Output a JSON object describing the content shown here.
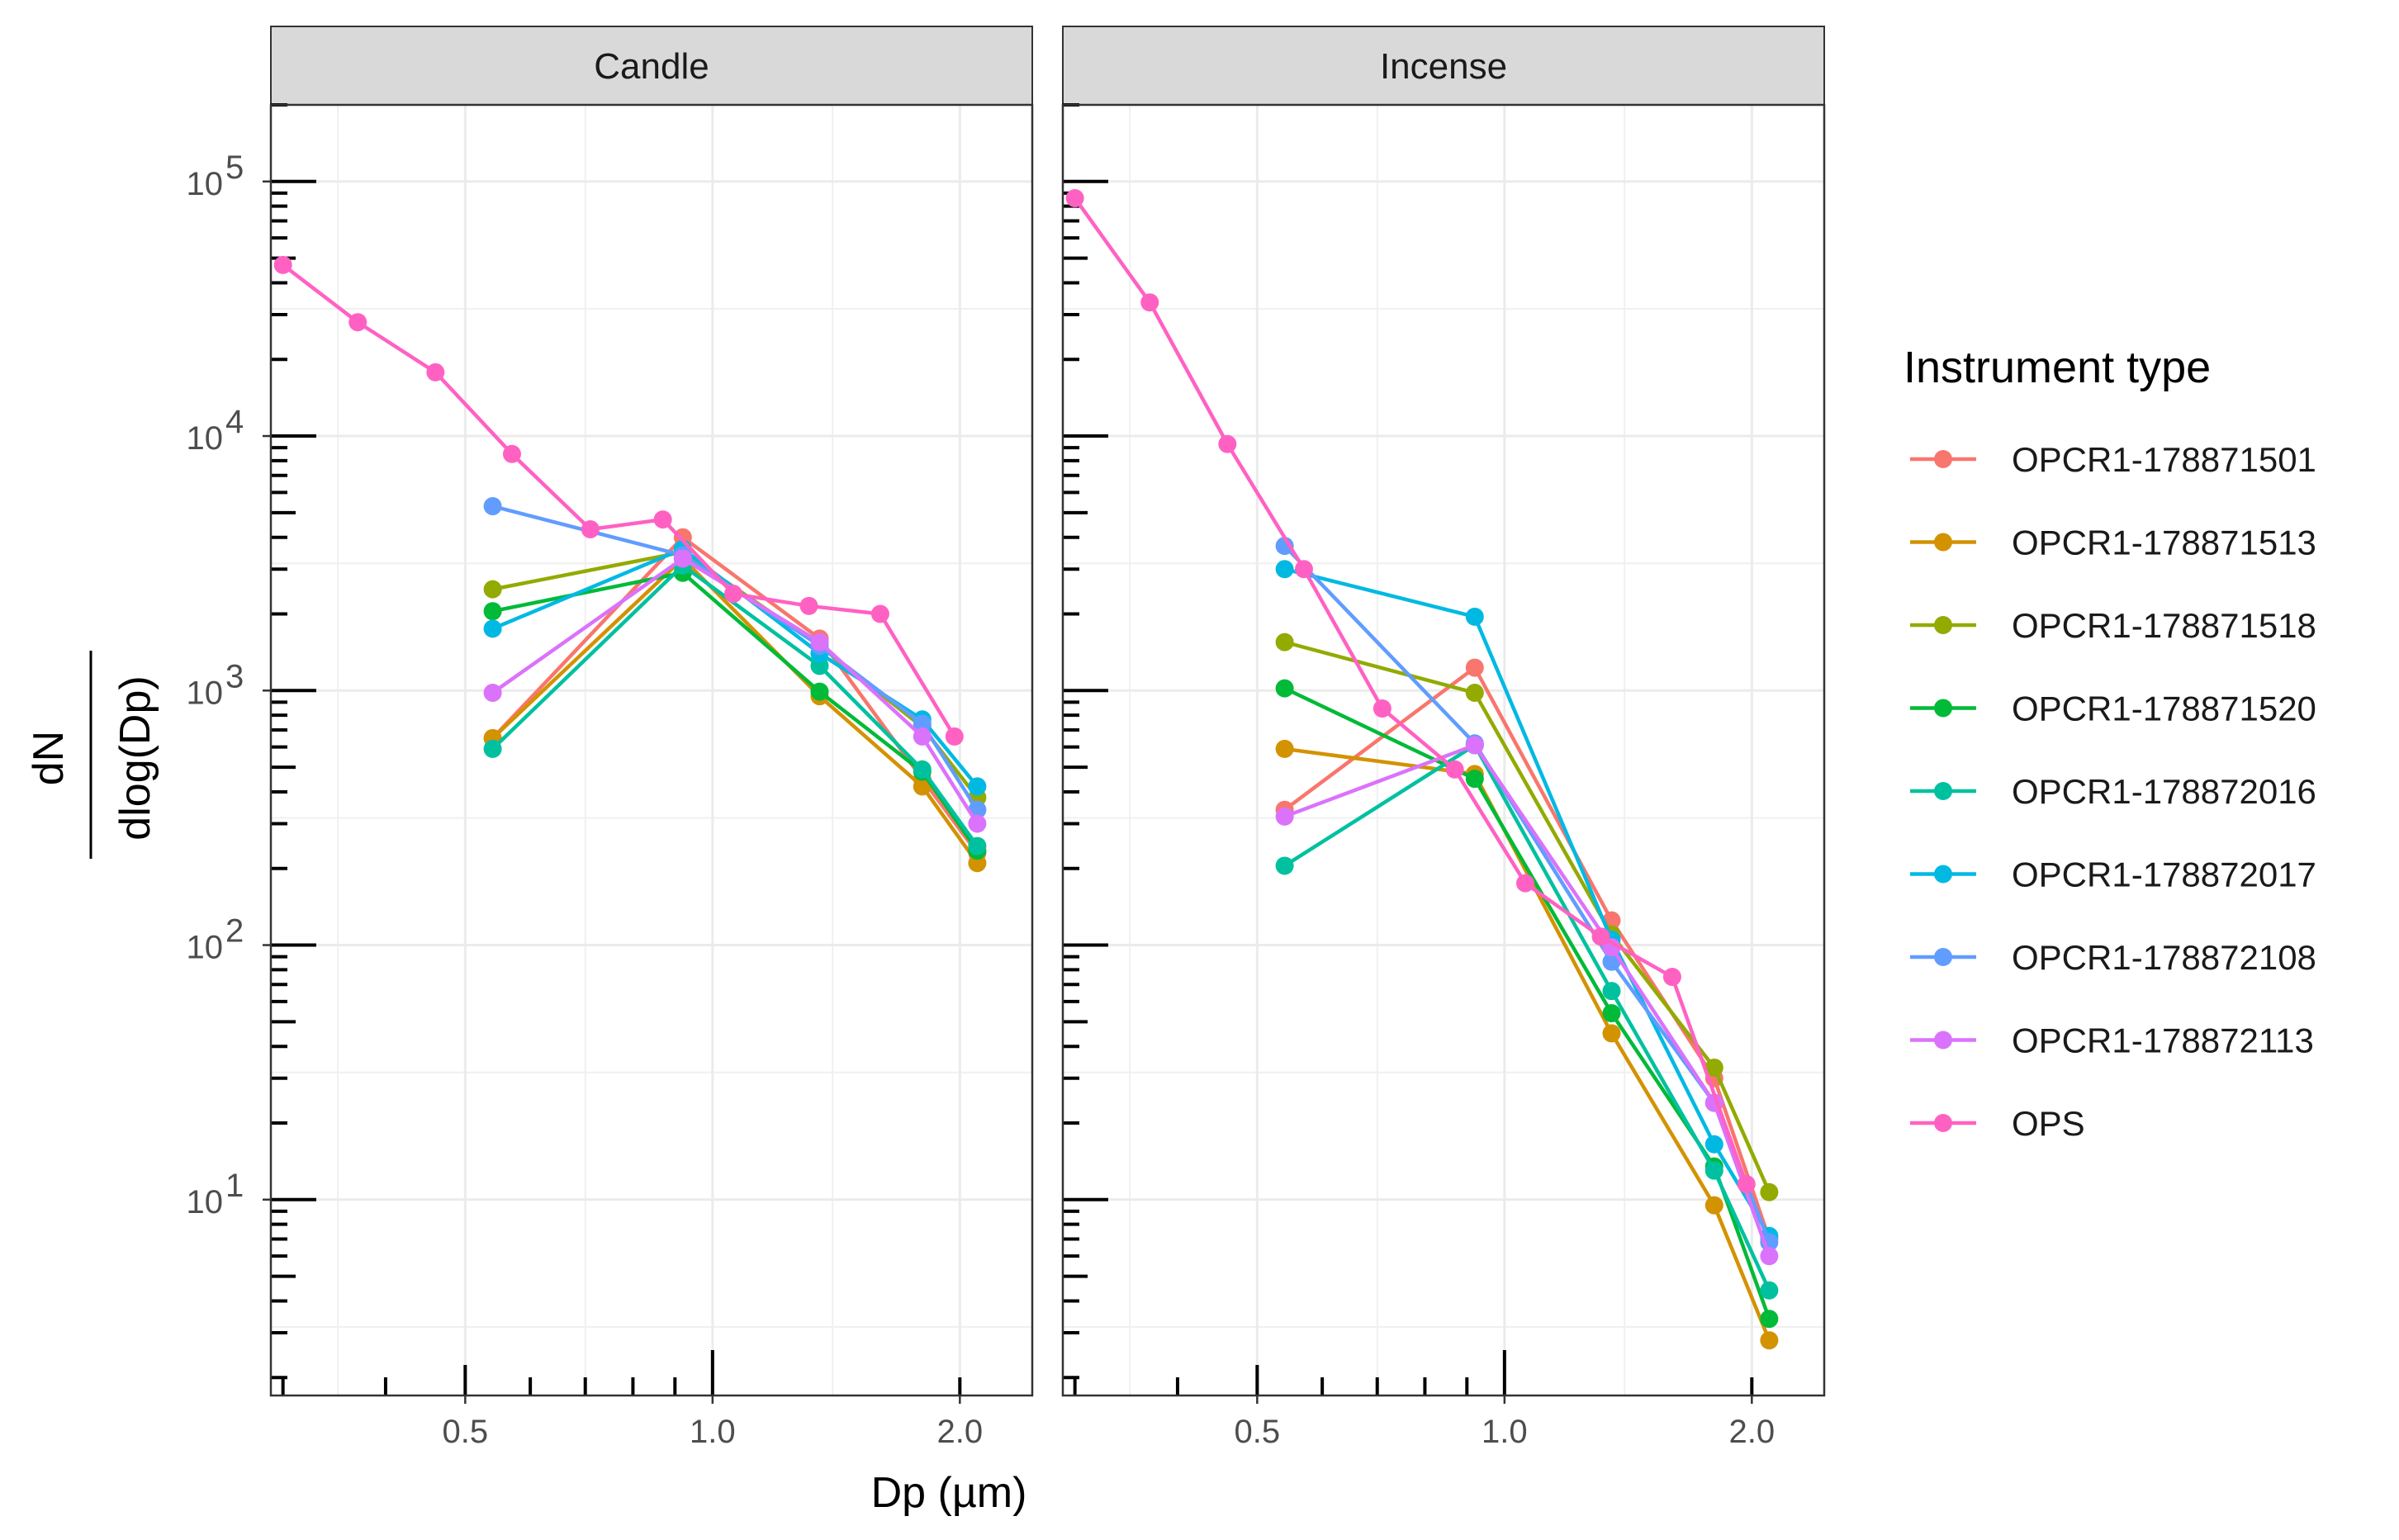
{
  "chart_data": {
    "type": "line",
    "facets": [
      "Candle",
      "Incense"
    ],
    "xlabel": "Dp (µm)",
    "ylabel_numerator": "dN",
    "ylabel_denominator": "dlog(Dp)",
    "x_scale": "log10",
    "y_scale": "log10",
    "xlim": [
      0.29,
      2.45
    ],
    "ylim": [
      1.7,
      200000
    ],
    "x_ticks": [
      {
        "value": 0.5,
        "label": "0.5"
      },
      {
        "value": 1.0,
        "label": "1.0"
      },
      {
        "value": 2.0,
        "label": "2.0"
      }
    ],
    "y_ticks": [
      {
        "value": 10,
        "base": "10",
        "exp": "1"
      },
      {
        "value": 100,
        "base": "10",
        "exp": "2"
      },
      {
        "value": 1000,
        "base": "10",
        "exp": "3"
      },
      {
        "value": 10000,
        "base": "10",
        "exp": "4"
      },
      {
        "value": 100000,
        "base": "10",
        "exp": "5"
      }
    ],
    "legend_title": "Instrument type",
    "legend_position": "right",
    "series": [
      {
        "name": "OPCR1-178871501",
        "color": "#F8766D",
        "x": [
          0.54,
          0.92,
          1.35,
          1.8,
          2.1
        ],
        "candle": [
          650,
          4000,
          1600,
          450,
          230
        ],
        "incense": [
          340,
          1230,
          125,
          30,
          7
        ]
      },
      {
        "name": "OPCR1-178871513",
        "color": "#D39200",
        "x": [
          0.54,
          0.92,
          1.35,
          1.8,
          2.1
        ],
        "candle": [
          650,
          3300,
          950,
          420,
          210
        ],
        "incense": [
          590,
          470,
          45,
          9.5,
          2.8
        ]
      },
      {
        "name": "OPCR1-178871518",
        "color": "#93AA00",
        "x": [
          0.54,
          0.92,
          1.35,
          1.8,
          2.1
        ],
        "candle": [
          2500,
          3500,
          1500,
          720,
          380
        ],
        "incense": [
          1550,
          980,
          110,
          33,
          10.7
        ]
      },
      {
        "name": "OPCR1-178871520",
        "color": "#00BA38",
        "x": [
          0.54,
          0.92,
          1.35,
          1.8,
          2.1
        ],
        "candle": [
          2050,
          2900,
          990,
          480,
          235
        ],
        "incense": [
          1020,
          450,
          54,
          13.5,
          3.4
        ]
      },
      {
        "name": "OPCR1-178872016",
        "color": "#00C19F",
        "x": [
          0.54,
          0.92,
          1.35,
          1.8,
          2.1
        ],
        "candle": [
          590,
          3100,
          1250,
          490,
          245
        ],
        "incense": [
          205,
          610,
          66,
          13,
          4.4
        ]
      },
      {
        "name": "OPCR1-178872017",
        "color": "#00B9E3",
        "x": [
          0.54,
          0.92,
          1.35,
          1.8,
          2.1
        ],
        "candle": [
          1750,
          3600,
          1400,
          770,
          420
        ],
        "incense": [
          3000,
          1950,
          105,
          16.5,
          7.2
        ]
      },
      {
        "name": "OPCR1-178872108",
        "color": "#619CFF",
        "x": [
          0.54,
          0.92,
          1.35,
          1.8,
          2.1
        ],
        "candle": [
          5300,
          3400,
          1500,
          740,
          340
        ],
        "incense": [
          3700,
          620,
          86,
          24,
          6.8
        ]
      },
      {
        "name": "OPCR1-178872113",
        "color": "#DB72FB",
        "x": [
          0.54,
          0.92,
          1.35,
          1.8,
          2.1
        ],
        "candle": [
          980,
          3300,
          1550,
          660,
          300
        ],
        "incense": [
          320,
          610,
          98,
          24,
          6
        ]
      },
      {
        "name": "OPS",
        "color": "#FF61C3",
        "x": [
          0.3,
          0.37,
          0.46,
          0.57,
          0.71,
          0.87,
          1.06,
          1.31,
          1.6,
          1.97,
          2.4
        ],
        "candle": [
          47000,
          28000,
          17800,
          8500,
          4300,
          4700,
          2400,
          2150,
          2000,
          660,
          null
        ],
        "incense": [
          86000,
          33500,
          9300,
          3000,
          850,
          490,
          175,
          108,
          75,
          11.5,
          null
        ]
      }
    ]
  }
}
